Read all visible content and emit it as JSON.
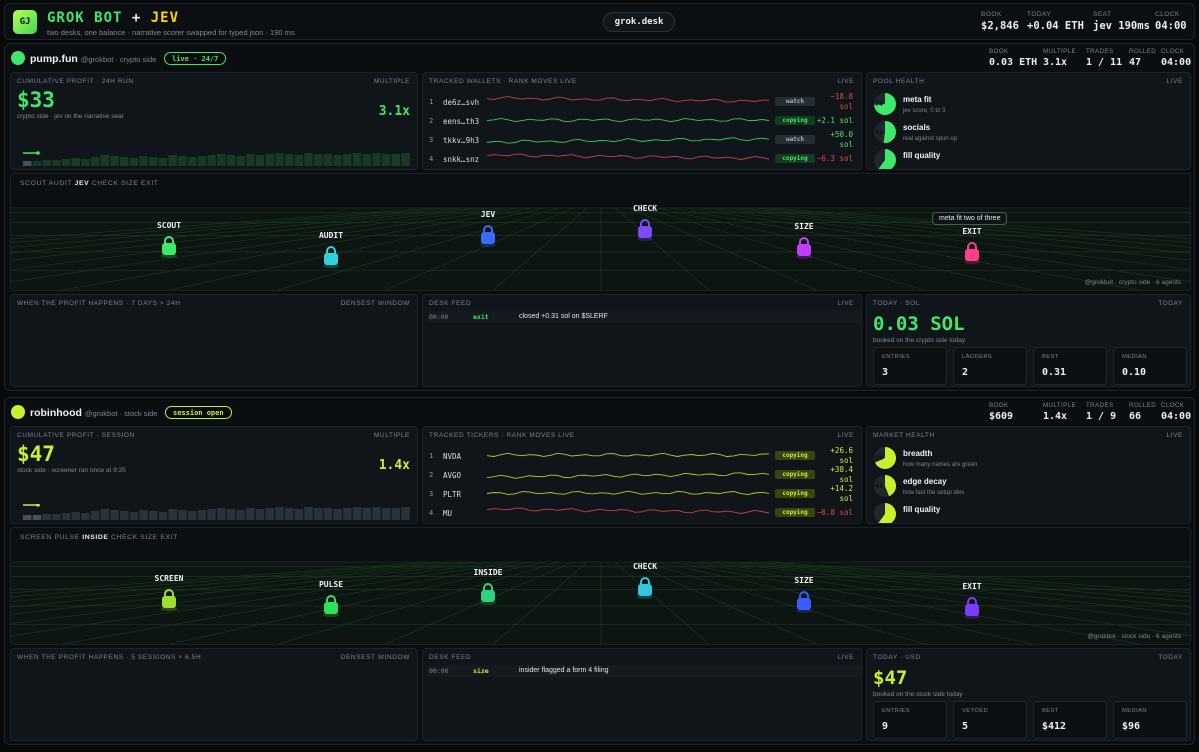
{
  "header": {
    "logo": "GJ",
    "brand_a": "GROK BOT",
    "brand_plus": "+",
    "brand_b": "JEV",
    "tagline": "two desks, one balance · narrative scorer swapped for typed json · 190 ms",
    "desk": "grok.desk",
    "stats": [
      {
        "k": "BOOK",
        "v": "$2,846"
      },
      {
        "k": "TODAY",
        "v": "+0.04 ETH"
      },
      {
        "k": "SEAT",
        "v": "jev 190ms"
      },
      {
        "k": "CLOCK",
        "v": "04:00"
      }
    ]
  },
  "desks": [
    {
      "name": "pump.fun",
      "handle": "@grokbot · crypto side",
      "status": "live · 24/7",
      "accent": "#3ee86a",
      "stats": [
        {
          "k": "BOOK",
          "v": "0.03 ETH"
        },
        {
          "k": "MULTIPLE",
          "v": "3.1x"
        },
        {
          "k": "TRADES",
          "v": "1 / 11"
        },
        {
          "k": "ROLLED",
          "v": "47"
        },
        {
          "k": "CLOCK",
          "v": "04:00"
        }
      ],
      "profit": {
        "title": "CUMULATIVE PROFIT · 24H RUN",
        "right": "MULTIPLE",
        "value": "$33",
        "sub": "crypto side · jev on the narrative seat",
        "multiple": "3.1x"
      },
      "tracker": {
        "title": "TRACKED WALLETS · RANK MOVES LIVE",
        "right": "LIVE",
        "rows": [
          {
            "n": "1",
            "name": "de6z…svh",
            "tag": "watch",
            "pnl": "−18.8",
            "unit": "sol",
            "color": "#e5484d",
            "trend": "down"
          },
          {
            "n": "2",
            "name": "eens…th3",
            "tag": "copying",
            "pnl": "+2.1 sol",
            "unit": "",
            "color": "#3ee86a",
            "trend": "flat"
          },
          {
            "n": "3",
            "name": "tkkv…9h3",
            "tag": "watch",
            "pnl": "+50.0",
            "unit": "sol",
            "color": "#3ee86a",
            "trend": "up"
          },
          {
            "n": "4",
            "name": "snkk…snz",
            "tag": "copying",
            "pnl": "−6.3 sol",
            "unit": "",
            "color": "#e5484d",
            "trend": "down"
          }
        ]
      },
      "health": {
        "title": "POOL HEALTH",
        "right": "LIVE",
        "items": [
          {
            "label": "meta fit",
            "sub": "jev score, 0 to 3",
            "value": "74",
            "pct": 0.74
          },
          {
            "label": "socials",
            "sub": "real against spun up",
            "value": "52",
            "pct": 0.52
          },
          {
            "label": "fill quality",
            "sub": "",
            "value": "",
            "pct": 0.6
          }
        ]
      },
      "pipeline": {
        "steps": [
          "SCOUT",
          "AUDIT",
          "JEV",
          "CHECK",
          "SIZE",
          "EXIT"
        ],
        "active": "JEV",
        "agents": [
          {
            "name": "SCOUT",
            "color": "#3ee86a"
          },
          {
            "name": "AUDIT",
            "color": "#2fd0e0"
          },
          {
            "name": "JEV",
            "color": "#3a6bff"
          },
          {
            "name": "CHECK",
            "color": "#7a4bff"
          },
          {
            "name": "SIZE",
            "color": "#c13cff"
          },
          {
            "name": "EXIT",
            "color": "#ff3d8b"
          }
        ],
        "bubble": "meta fit two of three",
        "footer": "@grokbot · crypto side · 6 agents"
      },
      "when": {
        "title": "WHEN THE PROFIT HAPPENS · 7 DAYS × 24H",
        "right": "DENSEST WINDOW"
      },
      "feed": {
        "title": "DESK FEED",
        "right": "LIVE",
        "time": "00:00",
        "type": "exit",
        "text": "closed +0.31 sol on $SLERF"
      },
      "today": {
        "title": "TODAY · SOL",
        "right": "TODAY",
        "value": "0.03 SOL",
        "sub": "booked on the crypto side today",
        "boxes": [
          {
            "k": "ENTRIES",
            "v": "3"
          },
          {
            "k": "LADDERS",
            "v": "2"
          },
          {
            "k": "BEST",
            "v": "0.31"
          },
          {
            "k": "MEDIAN",
            "v": "0.10"
          }
        ]
      }
    },
    {
      "name": "robinhood",
      "handle": "@grokbot · stock side",
      "status": "session open",
      "accent": "#c8f02c",
      "stats": [
        {
          "k": "BOOK",
          "v": "$609"
        },
        {
          "k": "MULTIPLE",
          "v": "1.4x"
        },
        {
          "k": "TRADES",
          "v": "1 / 9"
        },
        {
          "k": "ROLLED",
          "v": "66"
        },
        {
          "k": "CLOCK",
          "v": "04:00"
        }
      ],
      "profit": {
        "title": "CUMULATIVE PROFIT · SESSION",
        "right": "MULTIPLE",
        "value": "$47",
        "sub": "stock side · screener ran once at 9:35",
        "multiple": "1.4x"
      },
      "tracker": {
        "title": "TRACKED TICKERS · RANK MOVES LIVE",
        "right": "LIVE",
        "rows": [
          {
            "n": "1",
            "name": "NVDA",
            "tag": "copying",
            "pnl": "+26.6",
            "unit": "sol",
            "color": "#c8f02c",
            "trend": "flat"
          },
          {
            "n": "2",
            "name": "AVGO",
            "tag": "copying",
            "pnl": "+38.4",
            "unit": "sol",
            "color": "#c8f02c",
            "trend": "up"
          },
          {
            "n": "3",
            "name": "PLTR",
            "tag": "copying",
            "pnl": "+14.2",
            "unit": "sol",
            "color": "#c8f02c",
            "trend": "flat"
          },
          {
            "n": "4",
            "name": "MU",
            "tag": "copying",
            "pnl": "−6.8 sol",
            "unit": "",
            "color": "#e5484d",
            "trend": "down"
          }
        ]
      },
      "health": {
        "title": "MARKET HEALTH",
        "right": "LIVE",
        "items": [
          {
            "label": "breadth",
            "sub": "how many names are green",
            "value": "68",
            "pct": 0.68
          },
          {
            "label": "edge decay",
            "sub": "how fast the setup dies",
            "value": "44",
            "pct": 0.44
          },
          {
            "label": "fill quality",
            "sub": "",
            "value": "",
            "pct": 0.6
          }
        ]
      },
      "pipeline": {
        "steps": [
          "SCREEN",
          "PULSE",
          "INSIDE",
          "CHECK",
          "SIZE",
          "EXIT"
        ],
        "active": "INSIDE",
        "agents": [
          {
            "name": "SCREEN",
            "color": "#9be030"
          },
          {
            "name": "PULSE",
            "color": "#2ee05a"
          },
          {
            "name": "INSIDE",
            "color": "#2fd080"
          },
          {
            "name": "CHECK",
            "color": "#2fc8e0"
          },
          {
            "name": "SIZE",
            "color": "#3a5bff"
          },
          {
            "name": "EXIT",
            "color": "#7a3bff"
          }
        ],
        "bubble": "",
        "footer": "@grokbot · stock side · 6 agents"
      },
      "when": {
        "title": "WHEN THE PROFIT HAPPENS · 5 SESSIONS × 6.5H",
        "right": "DENSEST WINDOW"
      },
      "feed": {
        "title": "DESK FEED",
        "right": "LIVE",
        "time": "00:00",
        "type": "size",
        "text": "insider flagged a form 4 filing"
      },
      "today": {
        "title": "TODAY · USD",
        "right": "TODAY",
        "value": "$47",
        "sub": "booked on the stock side today",
        "boxes": [
          {
            "k": "ENTRIES",
            "v": "9"
          },
          {
            "k": "VETOED",
            "v": "5"
          },
          {
            "k": "BEST",
            "v": "$412"
          },
          {
            "k": "MEDIAN",
            "v": "$96"
          }
        ]
      }
    }
  ]
}
